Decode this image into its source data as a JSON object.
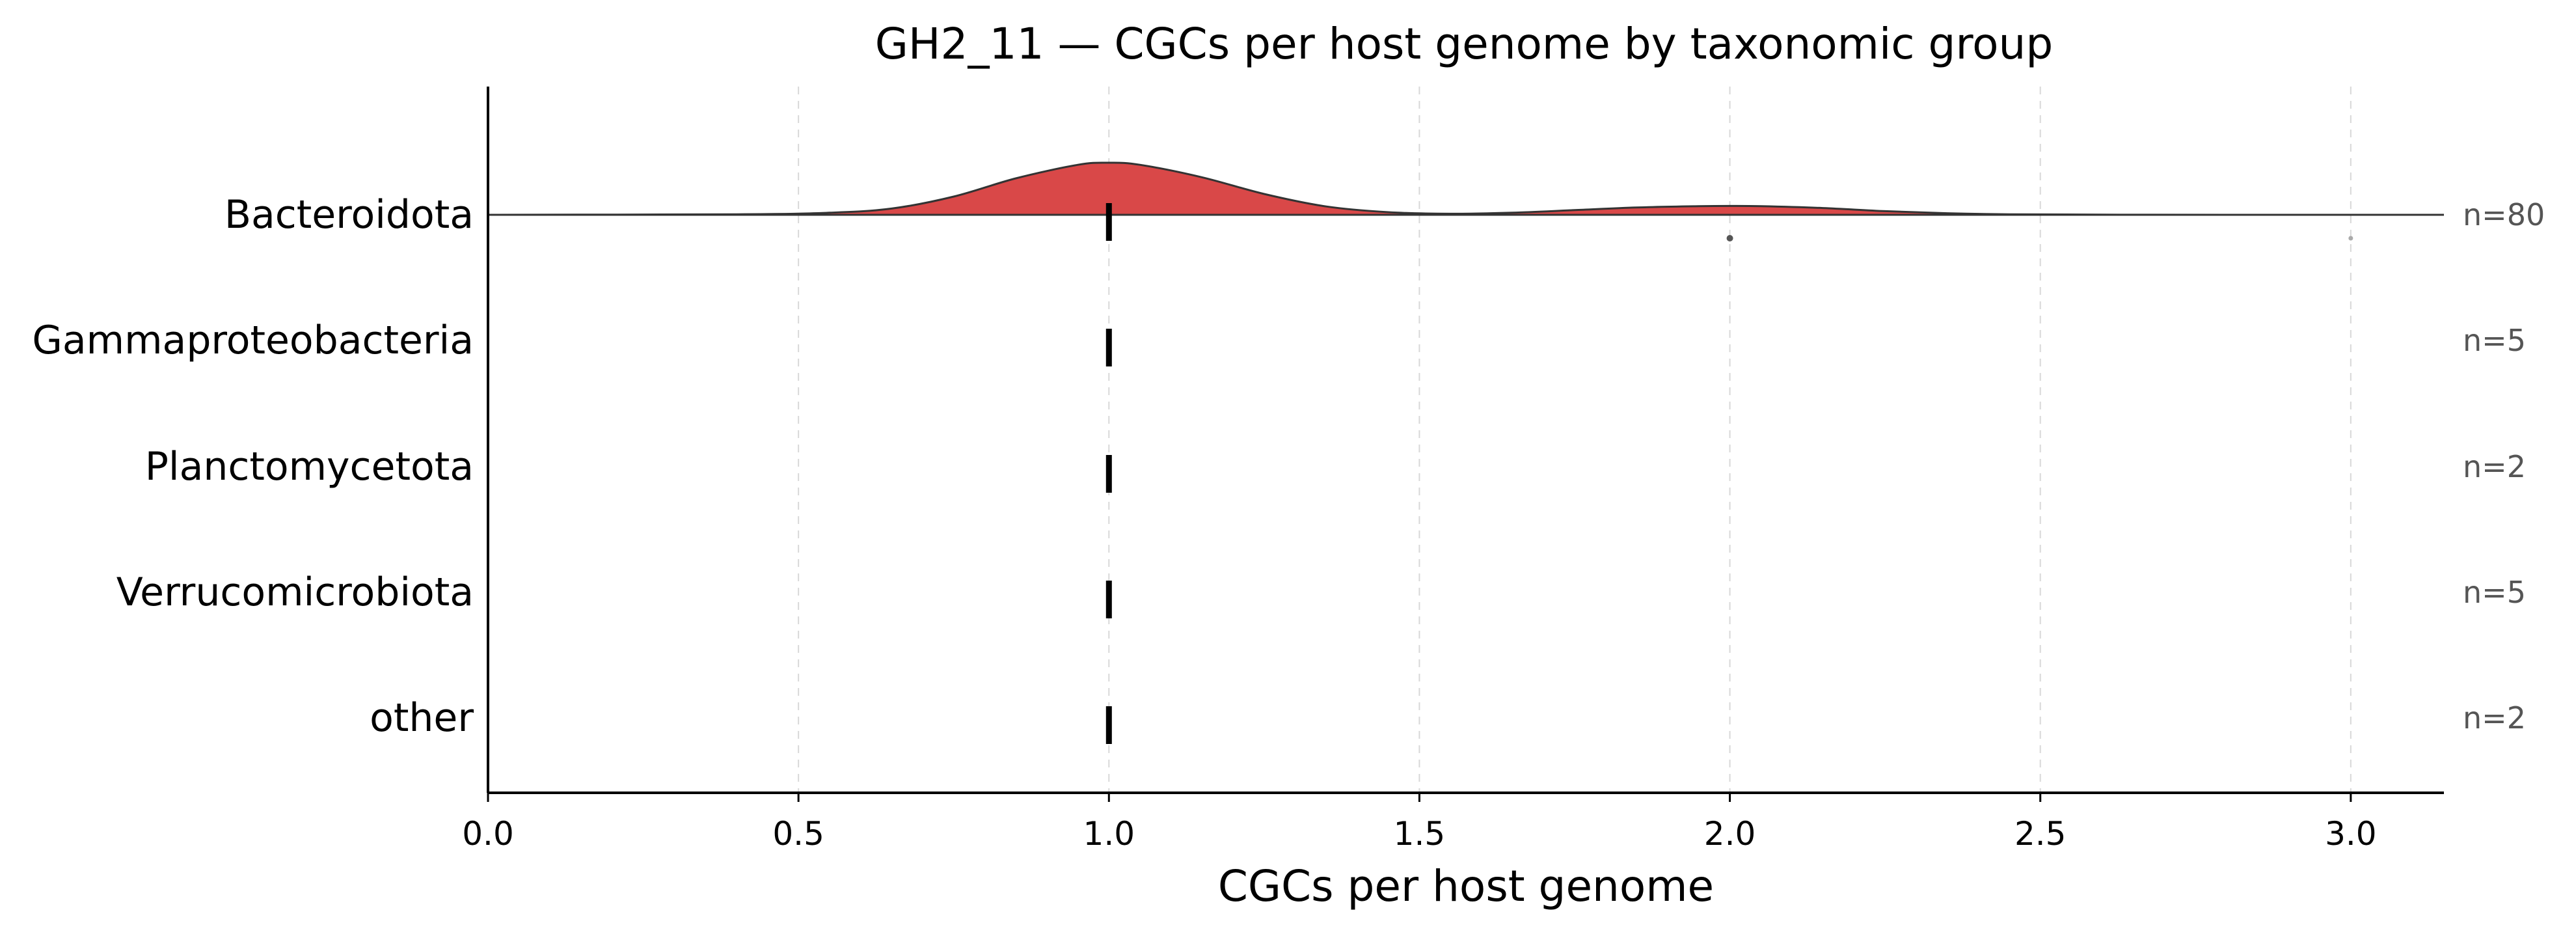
{
  "chart_data": {
    "type": "ridgeline",
    "title": "GH2_11 — CGCs per host genome by taxonomic group",
    "xlabel": "CGCs per host genome",
    "ylabel": "",
    "xlim": [
      0.0,
      3.15
    ],
    "xticks": [
      "0.0",
      "0.5",
      "1.0",
      "1.5",
      "2.0",
      "2.5",
      "3.0"
    ],
    "grid": "vertical, dashed",
    "fill_color": "#d94848",
    "groups": [
      {
        "name": "Bacteroidota",
        "n_label": "n=80",
        "median": 1.0,
        "density": {
          "x": [
            0.0,
            0.4,
            0.55,
            0.65,
            0.75,
            0.85,
            0.95,
            1.0,
            1.05,
            1.15,
            1.25,
            1.35,
            1.45,
            1.55,
            1.65,
            1.75,
            1.85,
            1.95,
            2.0,
            2.05,
            2.15,
            2.25,
            2.35,
            2.45,
            2.6,
            2.8,
            3.15
          ],
          "y": [
            0.0,
            0.01,
            0.04,
            0.12,
            0.35,
            0.7,
            0.96,
            1.0,
            0.96,
            0.72,
            0.4,
            0.16,
            0.05,
            0.02,
            0.04,
            0.09,
            0.14,
            0.165,
            0.17,
            0.165,
            0.13,
            0.07,
            0.03,
            0.01,
            0.003,
            0.0,
            0.0
          ]
        },
        "outliers": [
          2.0,
          3.0
        ]
      },
      {
        "name": "Gammaproteobacteria",
        "n_label": "n=5",
        "median": 1.0
      },
      {
        "name": "Planctomycetota",
        "n_label": "n=2",
        "median": 1.0
      },
      {
        "name": "Verrucomicrobiota",
        "n_label": "n=5",
        "median": 1.0
      },
      {
        "name": "other",
        "n_label": "n=2",
        "median": 1.0
      }
    ]
  }
}
